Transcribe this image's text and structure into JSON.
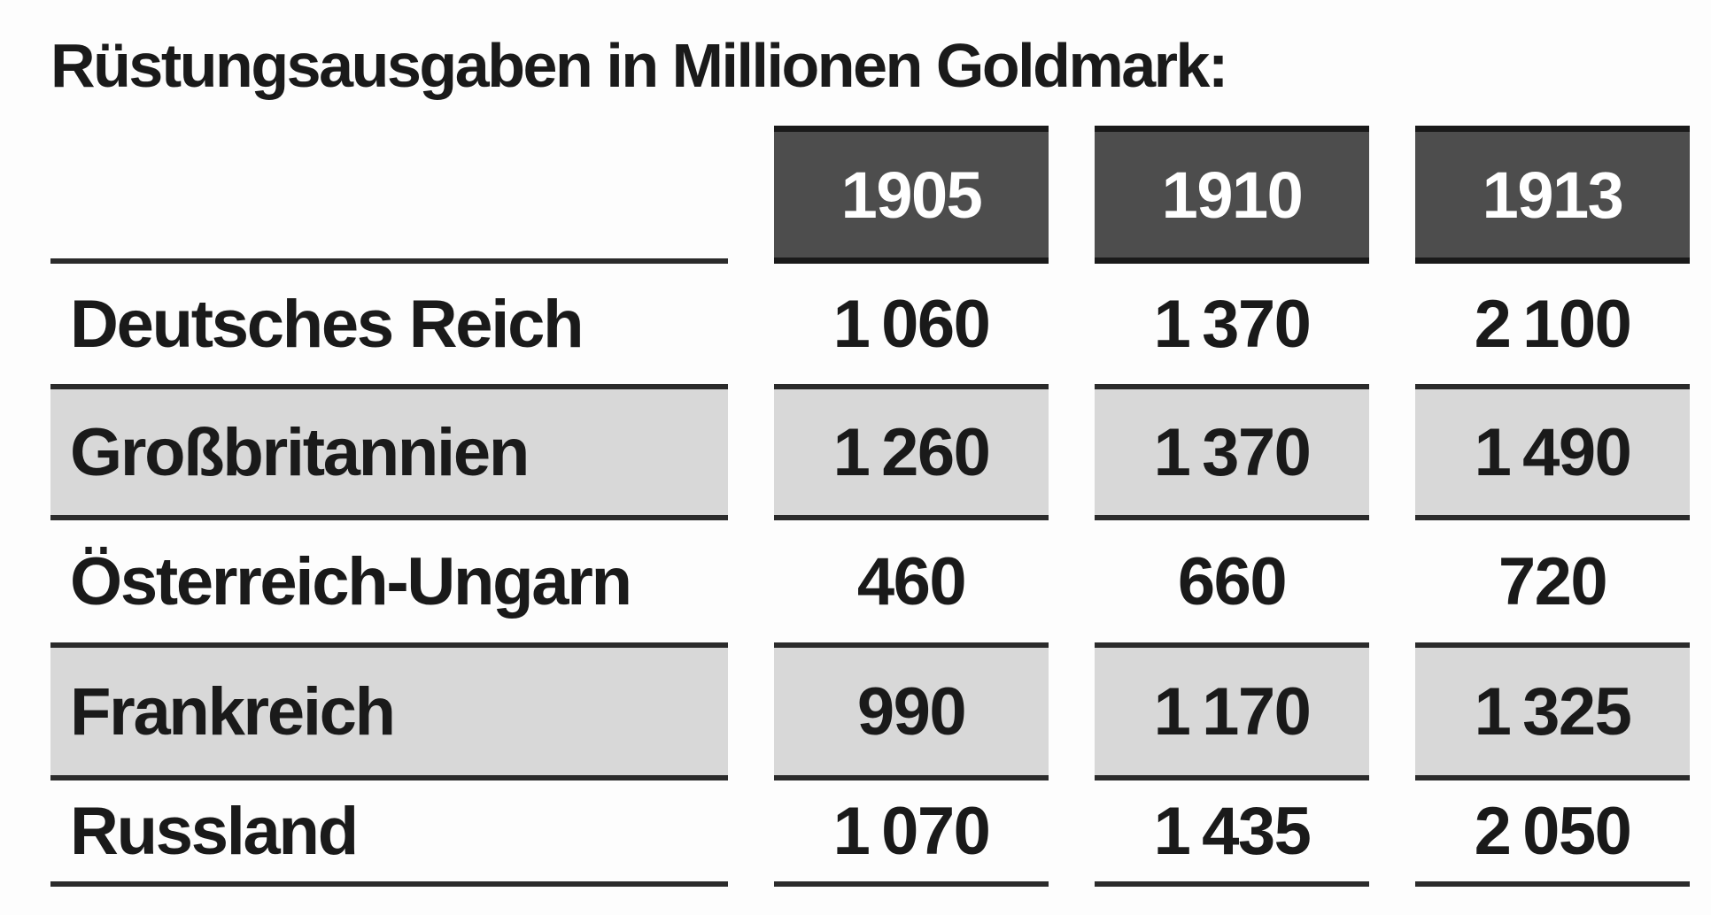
{
  "title": "Rüstungsausgaben in Millionen Goldmark:",
  "table": {
    "year_headers": [
      "1905",
      "1910",
      "1913"
    ],
    "rows": [
      {
        "label": "Deutsches Reich",
        "shaded": false,
        "values": [
          "1 060",
          "1 370",
          "2 100"
        ]
      },
      {
        "label": "Großbritannien",
        "shaded": true,
        "values": [
          "1 260",
          "1 370",
          "1 490"
        ]
      },
      {
        "label": "Österreich-Ungarn",
        "shaded": false,
        "values": [
          "460",
          "660",
          "720"
        ]
      },
      {
        "label": "Frankreich",
        "shaded": true,
        "values": [
          "990",
          "1 170",
          "1 325"
        ]
      },
      {
        "label": "Russland",
        "shaded": false,
        "values": [
          "1 070",
          "1 435",
          "2 050"
        ]
      }
    ]
  },
  "colors": {
    "header_box_fill": "#4d4d4d",
    "header_box_edge": "#1a1a1a",
    "header_text": "#ffffff",
    "shaded_row_fill": "#d8d8d8",
    "rule_line": "#2b2b2b",
    "text": "#1a1a1a",
    "background": "#fdfdfd"
  },
  "chart_data": {
    "type": "table",
    "title": "Rüstungsausgaben in Millionen Goldmark",
    "unit": "Millionen Goldmark",
    "categories": [
      "1905",
      "1910",
      "1913"
    ],
    "series": [
      {
        "name": "Deutsches Reich",
        "values": [
          1060,
          1370,
          2100
        ]
      },
      {
        "name": "Großbritannien",
        "values": [
          1260,
          1370,
          1490
        ]
      },
      {
        "name": "Österreich-Ungarn",
        "values": [
          460,
          660,
          720
        ]
      },
      {
        "name": "Frankreich",
        "values": [
          990,
          1170,
          1325
        ]
      },
      {
        "name": "Russland",
        "values": [
          1070,
          1435,
          2050
        ]
      }
    ],
    "layout": {
      "shaded_rows": [
        "Großbritannien",
        "Frankreich"
      ],
      "header_style": "dark-boxes",
      "grid": "horizontal-rules-only"
    }
  }
}
